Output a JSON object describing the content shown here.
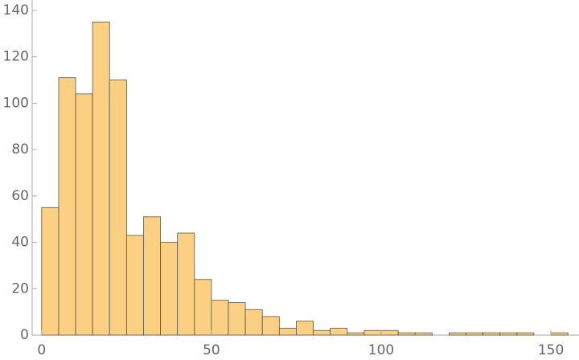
{
  "chart_data": {
    "type": "histogram",
    "bins": [
      0,
      5,
      10,
      15,
      20,
      25,
      30,
      35,
      40,
      45,
      50,
      55,
      60,
      65,
      70,
      75,
      80,
      85,
      90,
      95,
      100,
      105,
      110,
      115,
      120,
      125,
      130,
      135,
      140,
      145,
      150,
      155
    ],
    "values": [
      55,
      111,
      104,
      135,
      110,
      43,
      51,
      40,
      44,
      24,
      15,
      14,
      11,
      8,
      3,
      6,
      2,
      3,
      1,
      2,
      2,
      1,
      1,
      0,
      1,
      1,
      1,
      1,
      1,
      0,
      1
    ],
    "color": "#fbd083",
    "xlim": [
      -2.8,
      157.8
    ],
    "xticks": [
      0,
      50,
      100,
      150
    ],
    "ylim": [
      0,
      144.5
    ],
    "yticks": [
      0,
      20,
      40,
      60,
      80,
      100,
      120,
      140
    ]
  }
}
